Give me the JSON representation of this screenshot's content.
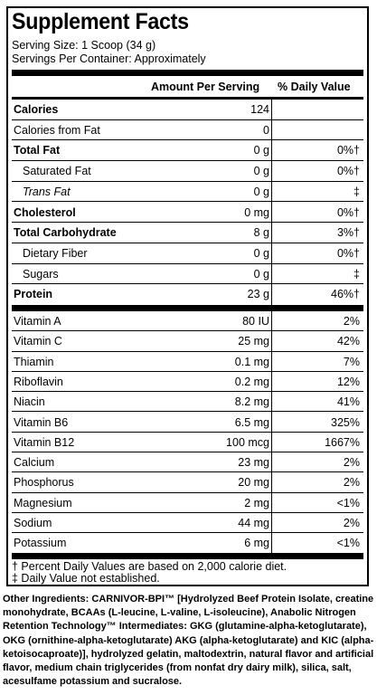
{
  "title": "Supplement Facts",
  "serving_size": "Serving Size: 1 Scoop (34 g)",
  "servings_per_container": "Servings Per Container: Approximately",
  "header": {
    "amount": "Amount Per Serving",
    "dv": "% Daily Value"
  },
  "macros": [
    {
      "label": "Calories",
      "amount": "124",
      "dv": "",
      "bold": true,
      "indent": false
    },
    {
      "label": "Calories from Fat",
      "amount": "0",
      "dv": "",
      "bold": false,
      "indent": false
    },
    {
      "label": "Total Fat",
      "amount": "0 g",
      "dv": "0%†",
      "bold": true,
      "indent": false
    },
    {
      "label": "Saturated Fat",
      "amount": "0 g",
      "dv": "0%†",
      "bold": false,
      "indent": true
    },
    {
      "label": "Trans Fat",
      "amount": "0 g",
      "dv": "‡",
      "bold": false,
      "indent": true,
      "italic": true
    },
    {
      "label": "Cholesterol",
      "amount": "0 mg",
      "dv": "0%†",
      "bold": true,
      "indent": false
    },
    {
      "label": "Total Carbohydrate",
      "amount": "8 g",
      "dv": "3%†",
      "bold": true,
      "indent": false
    },
    {
      "label": "Dietary Fiber",
      "amount": "0 g",
      "dv": "0%†",
      "bold": false,
      "indent": true
    },
    {
      "label": "Sugars",
      "amount": "0 g",
      "dv": "‡",
      "bold": false,
      "indent": true
    },
    {
      "label": "Protein",
      "amount": "23 g",
      "dv": "46%†",
      "bold": true,
      "indent": false
    }
  ],
  "micros": [
    {
      "label": "Vitamin A",
      "amount": "80 IU",
      "dv": "2%"
    },
    {
      "label": "Vitamin C",
      "amount": "25 mg",
      "dv": "42%"
    },
    {
      "label": "Thiamin",
      "amount": "0.1 mg",
      "dv": "7%"
    },
    {
      "label": "Riboflavin",
      "amount": "0.2 mg",
      "dv": "12%"
    },
    {
      "label": "Niacin",
      "amount": "8.2 mg",
      "dv": "41%"
    },
    {
      "label": "Vitamin B6",
      "amount": "6.5 mg",
      "dv": "325%"
    },
    {
      "label": "Vitamin B12",
      "amount": "100 mcg",
      "dv": "1667%"
    },
    {
      "label": "Calcium",
      "amount": "23 mg",
      "dv": "2%"
    },
    {
      "label": "Phosphorus",
      "amount": "20 mg",
      "dv": "2%"
    },
    {
      "label": "Magnesium",
      "amount": "2 mg",
      "dv": "<1%"
    },
    {
      "label": "Sodium",
      "amount": "44 mg",
      "dv": "2%"
    },
    {
      "label": "Potassium",
      "amount": "6 mg",
      "dv": "<1%"
    }
  ],
  "footnote_1": "† Percent Daily Values are based on 2,000 calorie diet.",
  "footnote_2": "‡ Daily Value not established.",
  "other_ingredients": "Other Ingredients: CARNIVOR-BPI™ [Hydrolyzed Beef Protein Isolate, creatine monohydrate, BCAAs (L-leucine, L-valine, L-isoleucine), Anabolic Nitrogen Retention Technology™ Intermediates: GKG (glutamine-alpha-ketoglutarate), OKG (ornithine-alpha-ketoglutarate) AKG (alpha-ketoglutarate) and KIC (alpha-ketoisocaproate)], hydrolyzed gelatin, maltodextrin, natural flavor and artificial flavor, medium chain triglycerides (from nonfat dry dairy milk), silica, salt, acesulfame potassium and sucralose."
}
